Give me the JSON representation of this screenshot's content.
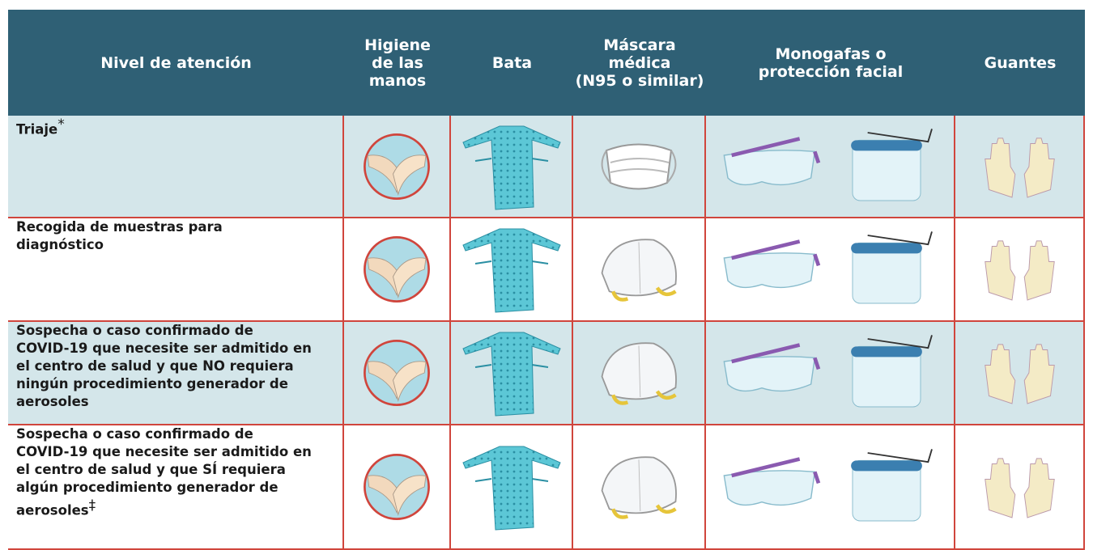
{
  "table": {
    "header": [
      [
        "Nivel de atención"
      ],
      [
        "Higiene",
        "de las",
        "manos"
      ],
      [
        "Bata"
      ],
      [
        "Máscara",
        "médica",
        "(N95 o similar)"
      ],
      [
        "Monogafas o",
        "protección facial"
      ],
      [
        "Guantes"
      ]
    ],
    "rows": [
      {
        "lines": [
          "Triaje"
        ],
        "mark": "*"
      },
      {
        "lines": [
          "Recogida de muestras para",
          "diagnóstico"
        ]
      },
      {
        "lines": [
          "Sospecha o caso confirmado de",
          "COVID-19 que necesite ser admitido en",
          "el centro de salud y que NO requiera",
          "ningún procedimiento generador de",
          "aerosoles"
        ]
      },
      {
        "lines": [
          "Sospecha o caso confirmado de",
          "COVID-19 que necesite ser admitido en",
          "el centro de salud y que SÍ requiera",
          "algún procedimiento generador de",
          "aerosoles"
        ],
        "mark": "‡"
      }
    ]
  }
}
